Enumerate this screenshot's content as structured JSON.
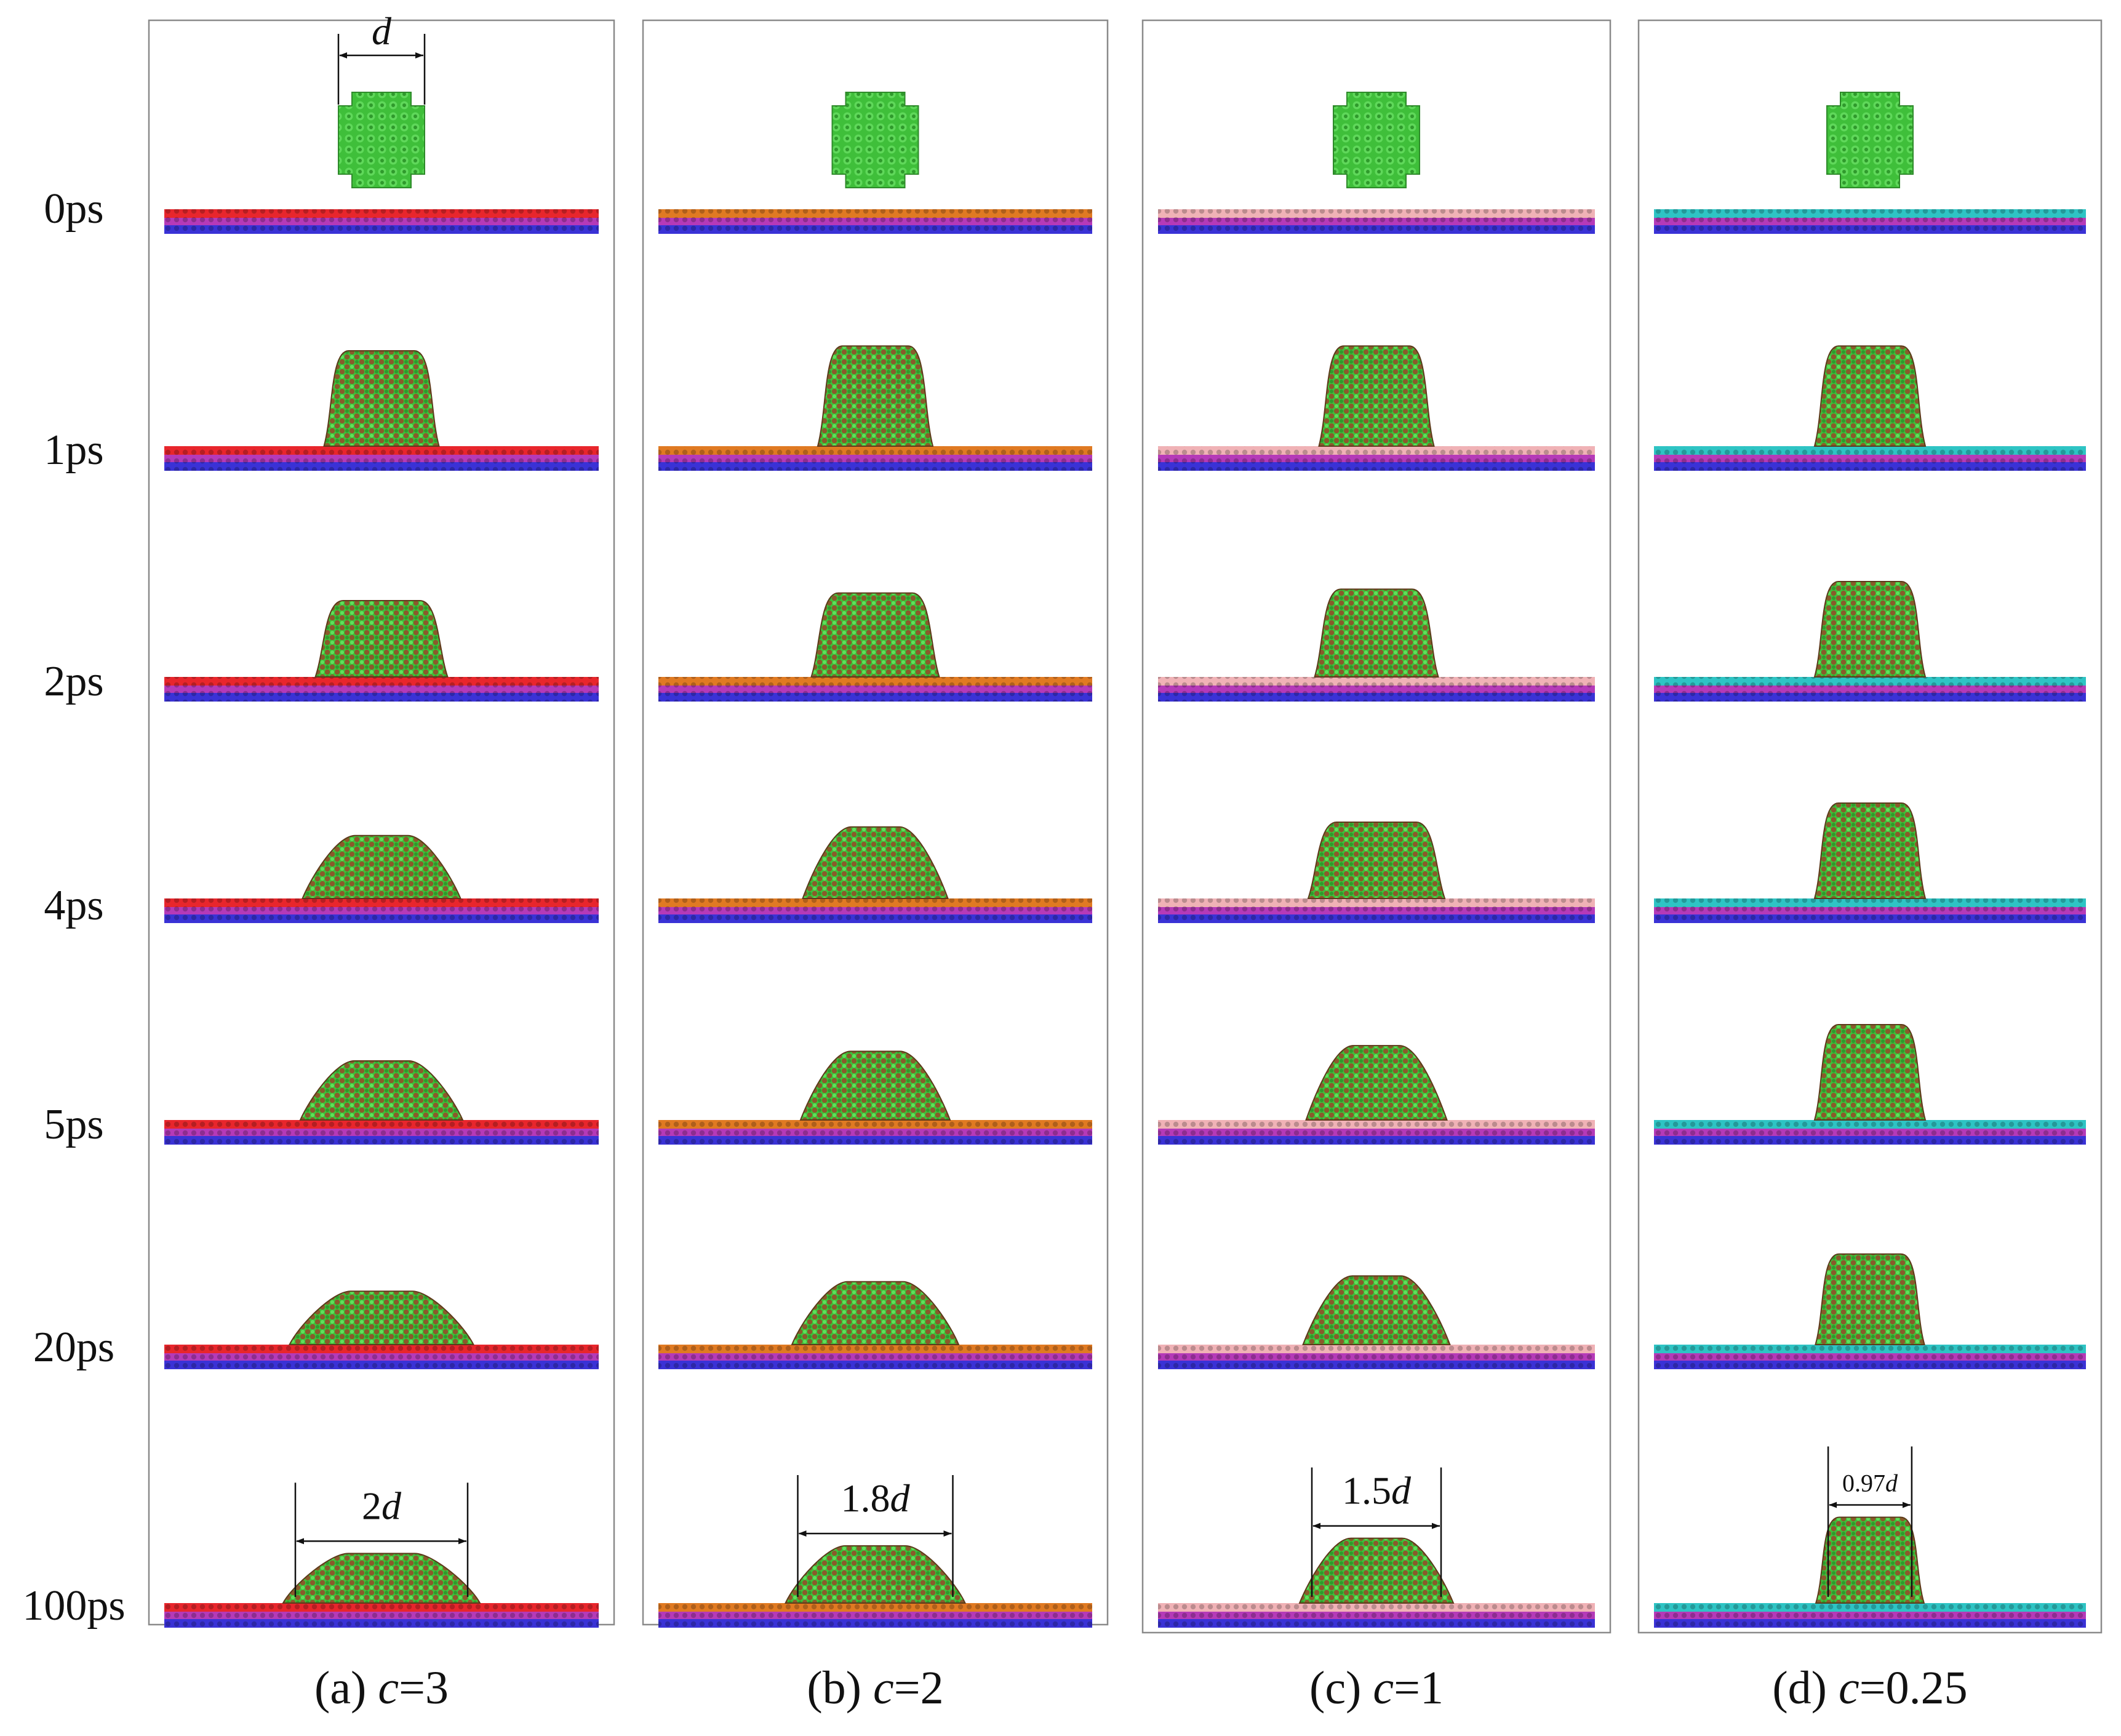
{
  "figure": {
    "time_labels": [
      "0ps",
      "1ps",
      "2ps",
      "4ps",
      "5ps",
      "20ps",
      "100ps"
    ],
    "panels": [
      {
        "caption_prefix": "(a) ",
        "caption_var": "c",
        "caption_value": "=3",
        "substrate_top_color": "#e8262c",
        "spread_ratio_by_time": [
          1.0,
          1.05,
          1.25,
          1.55,
          1.6,
          1.85,
          2.0
        ],
        "height_ratio_by_time": [
          1.0,
          1.0,
          0.8,
          0.66,
          0.62,
          0.56,
          0.52
        ],
        "start_dimension": {
          "label": "d"
        },
        "final_dimension": {
          "number": "2",
          "var": "d"
        }
      },
      {
        "caption_prefix": "(b) ",
        "caption_var": "c",
        "caption_value": "=2",
        "substrate_top_color": "#e07a22",
        "spread_ratio_by_time": [
          1.0,
          1.05,
          1.2,
          1.4,
          1.45,
          1.65,
          1.8
        ],
        "height_ratio_by_time": [
          1.0,
          1.05,
          0.88,
          0.75,
          0.72,
          0.66,
          0.6
        ],
        "final_dimension": {
          "number": "1.8",
          "var": "d"
        }
      },
      {
        "caption_prefix": "(c) ",
        "caption_var": "c",
        "caption_value": "=1",
        "substrate_top_color": "#f0b2b6",
        "spread_ratio_by_time": [
          1.0,
          1.05,
          1.15,
          1.3,
          1.35,
          1.42,
          1.5
        ],
        "height_ratio_by_time": [
          1.0,
          1.05,
          0.92,
          0.8,
          0.78,
          0.72,
          0.68
        ],
        "final_dimension": {
          "number": "1.5",
          "var": "d"
        }
      },
      {
        "caption_prefix": "(d) ",
        "caption_var": "c",
        "caption_value": "=0.25",
        "substrate_top_color": "#2ec4c4",
        "spread_ratio_by_time": [
          1.0,
          1.0,
          1.0,
          1.0,
          1.0,
          0.98,
          0.97
        ],
        "height_ratio_by_time": [
          1.0,
          1.05,
          1.0,
          1.0,
          1.0,
          0.95,
          0.9
        ],
        "final_dimension": {
          "number": "0.97",
          "var": "d"
        }
      }
    ],
    "colors": {
      "droplet_green": "#3fbf3a",
      "droplet_brown": "#8a5a2b",
      "substrate_magenta": "#b53ab8",
      "substrate_blue": "#3a32d6",
      "frame": "#8a8a8a"
    }
  }
}
